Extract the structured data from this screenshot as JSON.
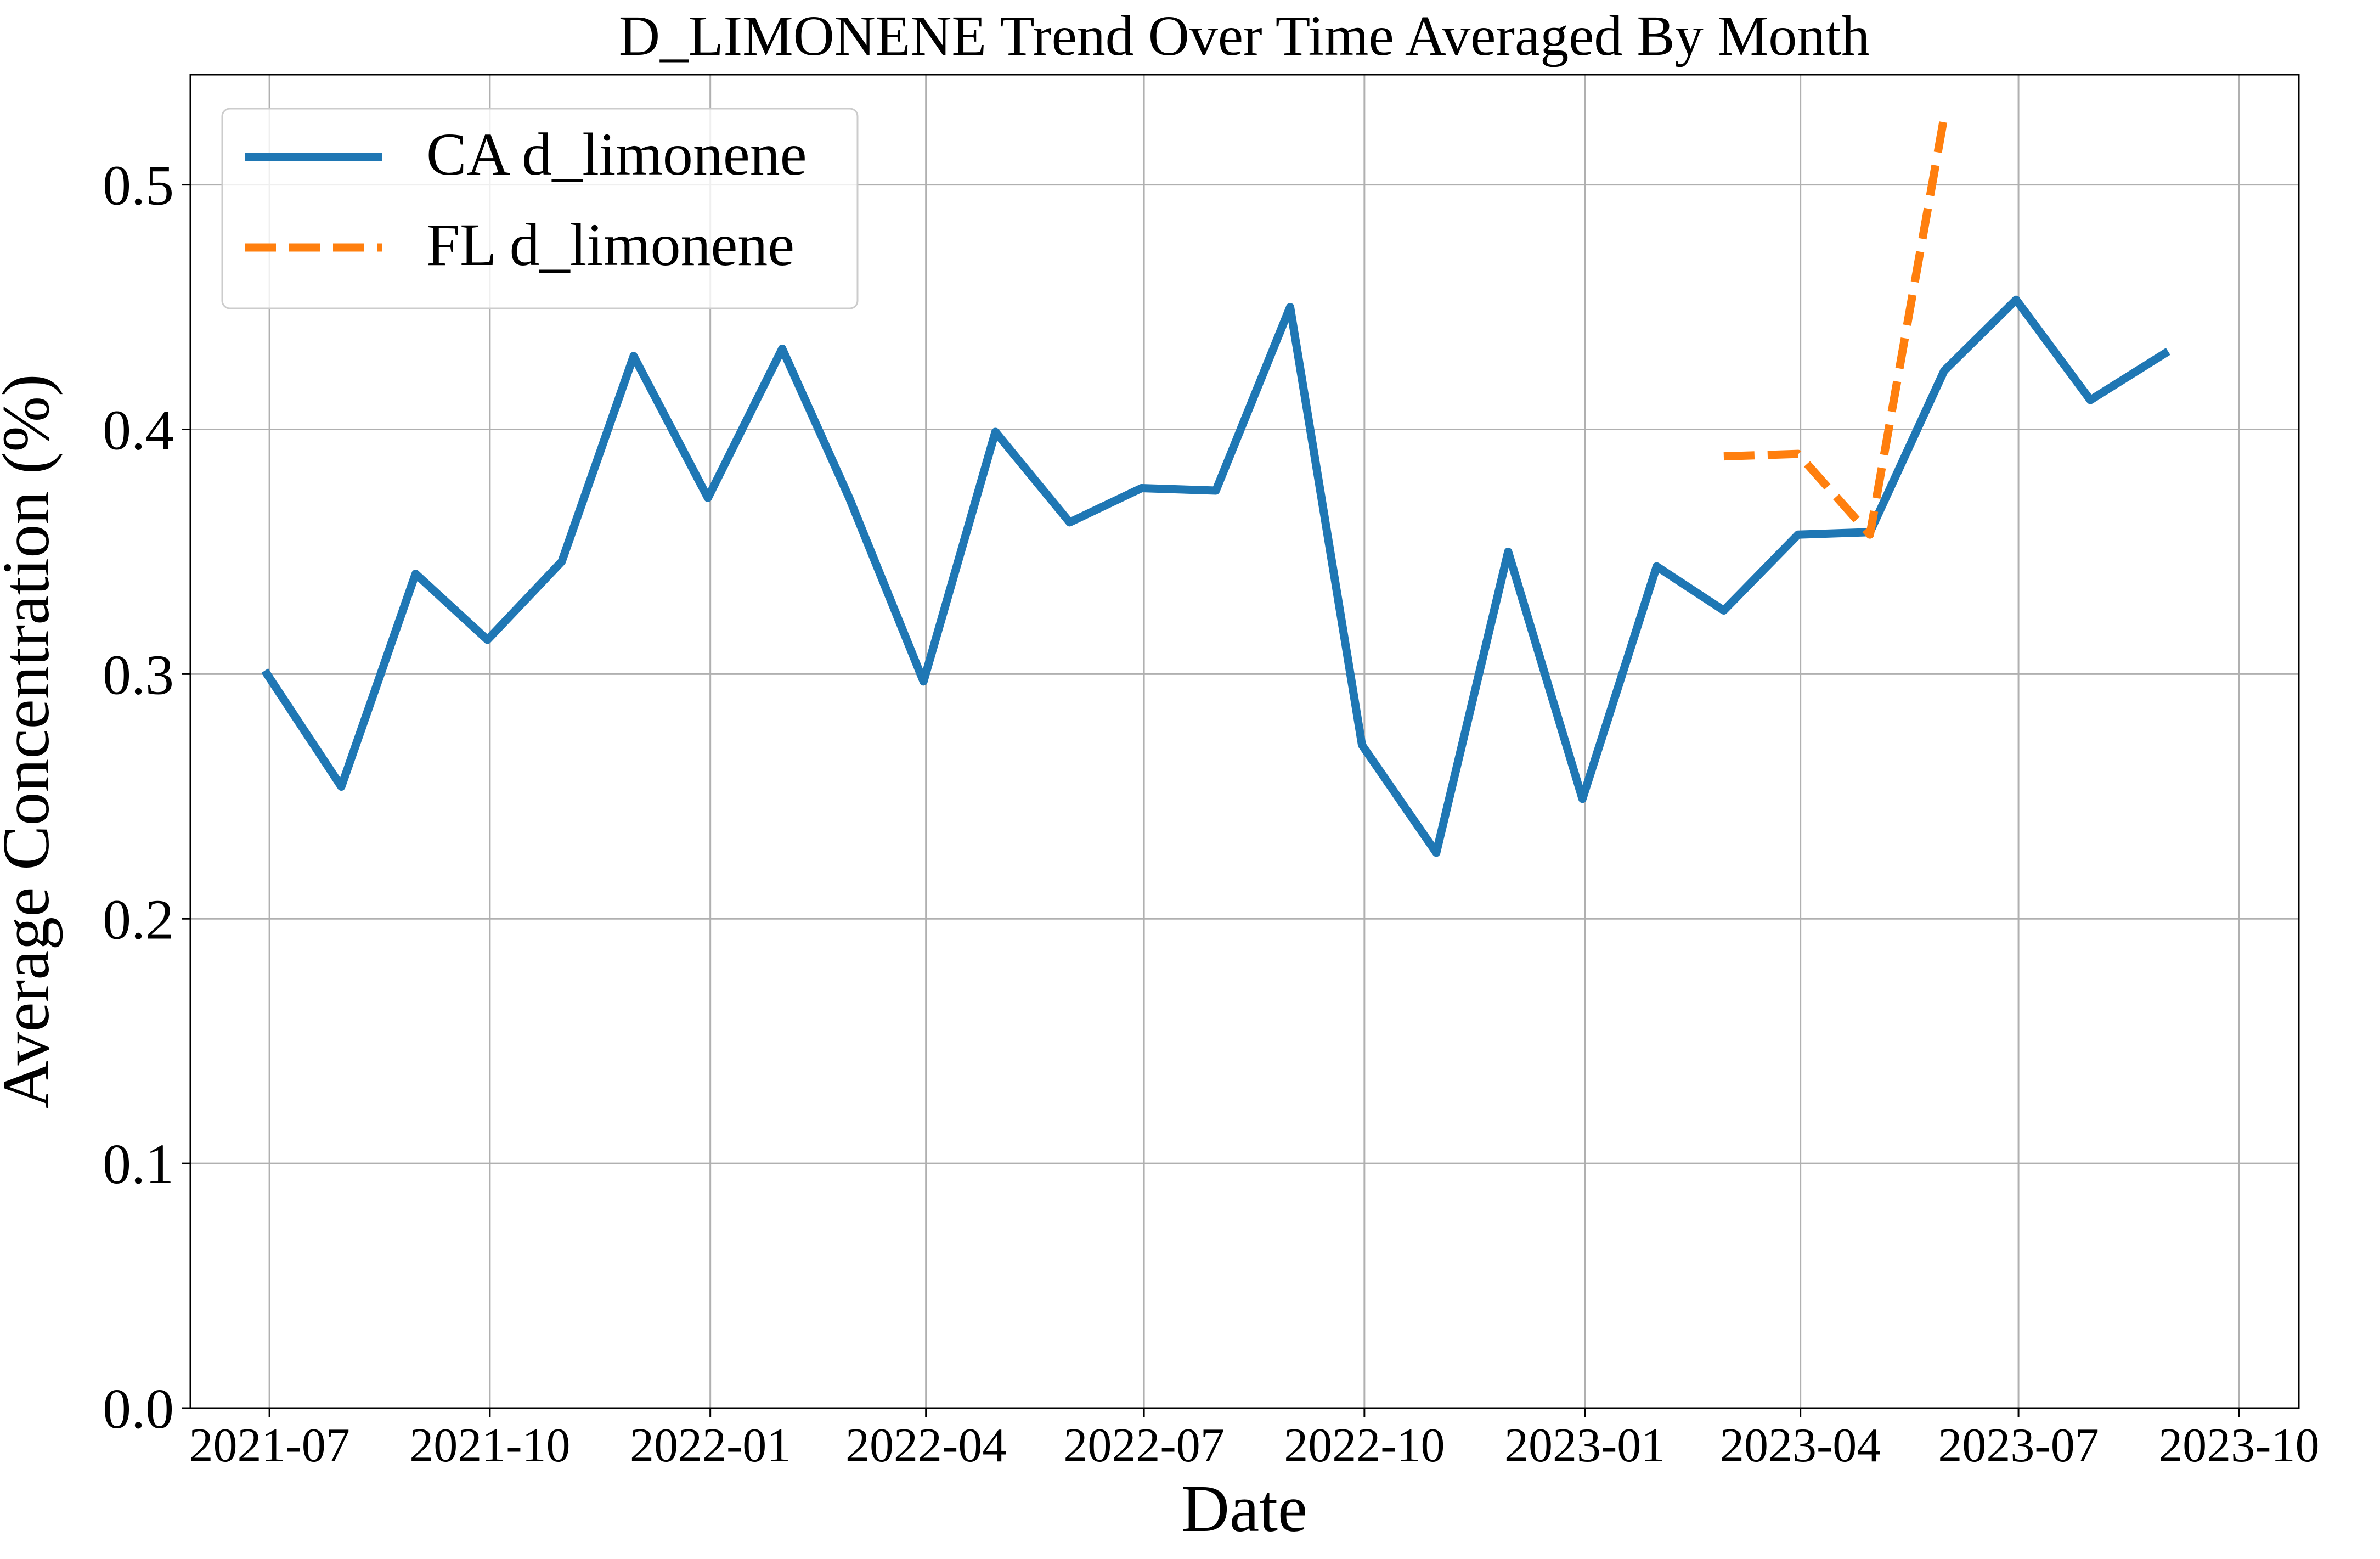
{
  "chart_data": {
    "type": "line",
    "title": "D_LIMONENE Trend Over Time Averaged By Month",
    "xlabel": "Date",
    "ylabel": "Average Concentration (%)",
    "x_tick_labels": [
      "2021-07",
      "2021-10",
      "2022-01",
      "2022-04",
      "2022-07",
      "2022-10",
      "2023-01",
      "2023-04",
      "2023-07",
      "2023-10"
    ],
    "y_tick_labels": [
      "0.0",
      "0.1",
      "0.2",
      "0.3",
      "0.4",
      "0.5"
    ],
    "y_ticks": [
      0.0,
      0.1,
      0.2,
      0.3,
      0.4,
      0.5
    ],
    "xlim": [
      "2021-05-29",
      "2023-10-26"
    ],
    "ylim": [
      0.0,
      0.545
    ],
    "grid": true,
    "legend_position": "upper-left",
    "series": [
      {
        "name": "CA d_limonene",
        "color": "#1f77b4",
        "style": "solid",
        "points": [
          {
            "x": "2021-06-30",
            "y": 0.3
          },
          {
            "x": "2021-07-31",
            "y": 0.254
          },
          {
            "x": "2021-08-31",
            "y": 0.341
          },
          {
            "x": "2021-09-30",
            "y": 0.314
          },
          {
            "x": "2021-10-31",
            "y": 0.346
          },
          {
            "x": "2021-11-30",
            "y": 0.43
          },
          {
            "x": "2021-12-31",
            "y": 0.372
          },
          {
            "x": "2022-01-31",
            "y": 0.433
          },
          {
            "x": "2022-02-28",
            "y": 0.372
          },
          {
            "x": "2022-03-31",
            "y": 0.297
          },
          {
            "x": "2022-04-30",
            "y": 0.399
          },
          {
            "x": "2022-05-31",
            "y": 0.362
          },
          {
            "x": "2022-06-30",
            "y": 0.376
          },
          {
            "x": "2022-07-31",
            "y": 0.375
          },
          {
            "x": "2022-08-31",
            "y": 0.45
          },
          {
            "x": "2022-09-30",
            "y": 0.271
          },
          {
            "x": "2022-10-31",
            "y": 0.227
          },
          {
            "x": "2022-11-30",
            "y": 0.35
          },
          {
            "x": "2022-12-31",
            "y": 0.249
          },
          {
            "x": "2023-01-31",
            "y": 0.344
          },
          {
            "x": "2023-02-28",
            "y": 0.326
          },
          {
            "x": "2023-03-31",
            "y": 0.357
          },
          {
            "x": "2023-04-30",
            "y": 0.358
          },
          {
            "x": "2023-05-31",
            "y": 0.424
          },
          {
            "x": "2023-06-30",
            "y": 0.453
          },
          {
            "x": "2023-07-31",
            "y": 0.412
          },
          {
            "x": "2023-08-31",
            "y": 0.431
          }
        ]
      },
      {
        "name": "FL d_limonene",
        "color": "#ff7f0e",
        "style": "dashed",
        "points": [
          {
            "x": "2023-02-28",
            "y": 0.389
          },
          {
            "x": "2023-03-31",
            "y": 0.39
          },
          {
            "x": "2023-04-30",
            "y": 0.357
          },
          {
            "x": "2023-05-31",
            "y": 0.528
          }
        ]
      }
    ]
  }
}
